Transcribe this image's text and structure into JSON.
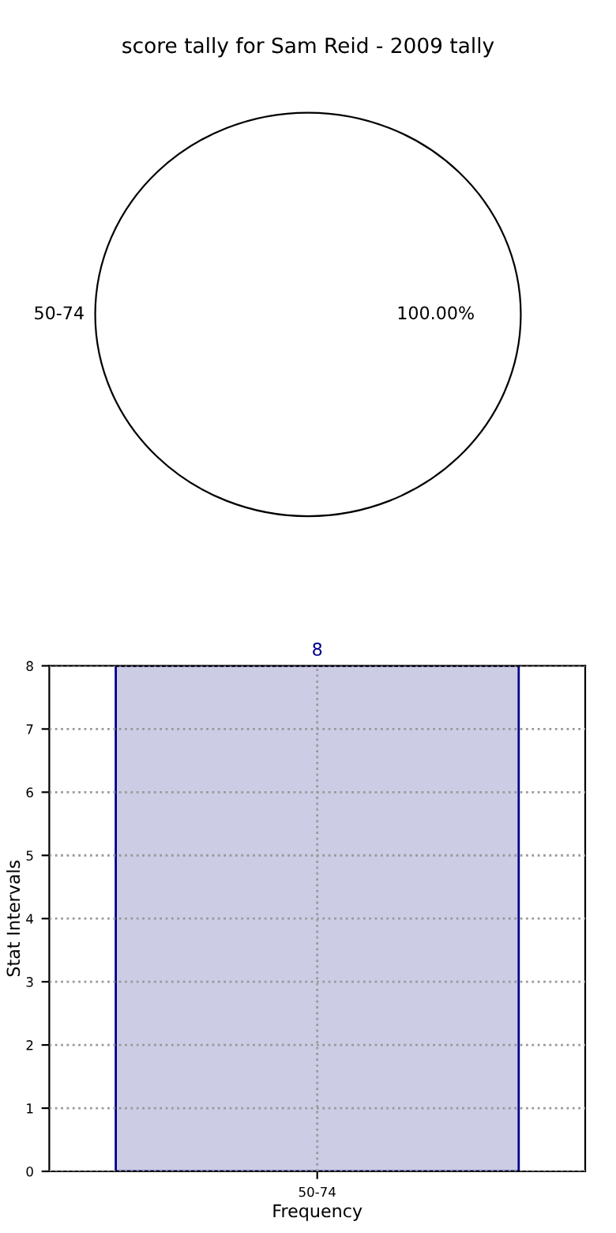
{
  "chart_data": [
    {
      "type": "pie",
      "title": "score tally for Sam Reid - 2009 tally",
      "categories": [
        "50-74"
      ],
      "values": [
        100
      ],
      "colors": [
        "#ffffff"
      ],
      "value_labels": [
        "100.00%"
      ]
    },
    {
      "type": "bar",
      "categories": [
        "50-74"
      ],
      "values": [
        8
      ],
      "color": "#ccccE5",
      "xlabel": "Frequency",
      "ylabel": "Stat Intervals",
      "ylim": [
        0,
        8
      ],
      "yticks": [
        0,
        1,
        2,
        3,
        4,
        5,
        6,
        7,
        8
      ],
      "grid": true,
      "data_labels": true
    }
  ]
}
